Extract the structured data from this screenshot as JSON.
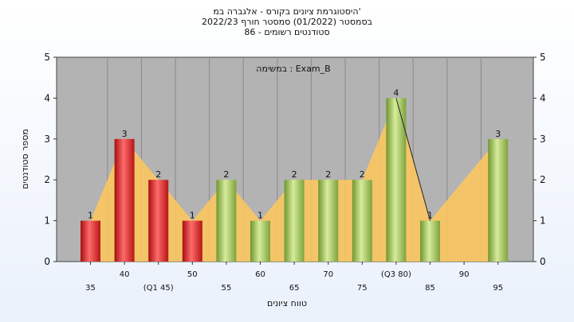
{
  "header": {
    "title_line1": "היסטוגרמת ציונים בקורס - אלגברה במ'",
    "title_line2": "בסמסטר  (01/2022)  סמסטר חורף  2022/23",
    "title_line3": "סטודנטים רשומים - 86"
  },
  "chart_data": {
    "type": "bar",
    "title": "היסטוגרמת ציונים בקורס - אלגברה במ'",
    "annotation": "במשימה : Exam_B",
    "xlabel": "טווח ציונים",
    "ylabel": "מספר סטודנטים",
    "ylim": [
      0,
      5
    ],
    "yticks": [
      0,
      1,
      2,
      3,
      4,
      5
    ],
    "grid": true,
    "categories": [
      "35",
      "40",
      "(Q1 45)",
      "50",
      "55",
      "60",
      "65",
      "70",
      "75",
      "(Q3 80)",
      "85",
      "90",
      "95"
    ],
    "values": [
      1,
      3,
      2,
      1,
      2,
      1,
      2,
      2,
      2,
      4,
      1,
      0,
      3
    ],
    "bar_status": [
      "fail",
      "fail",
      "fail",
      "fail",
      "pass",
      "pass",
      "pass",
      "pass",
      "pass",
      "pass",
      "pass",
      "pass",
      "pass"
    ],
    "colors": {
      "fail": "#e02a2a",
      "pass": "#9bc255",
      "area": "#ffc85a",
      "plot_bg": "#b3b3b3",
      "page_bg": "#eaf1fb"
    }
  }
}
